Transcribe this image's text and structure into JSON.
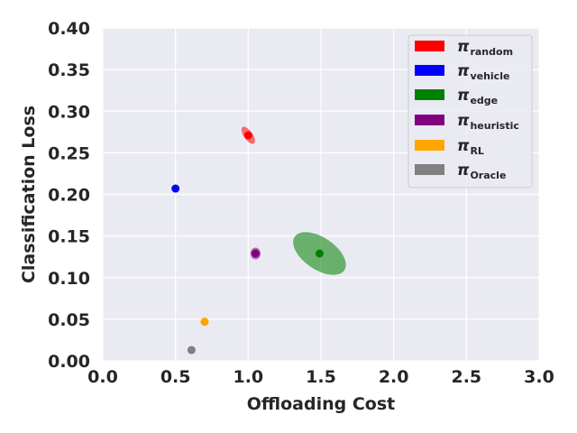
{
  "chart_data": {
    "type": "scatter",
    "xlabel": "Offloading Cost",
    "ylabel": "Classification Loss",
    "xlim": [
      0.0,
      3.0
    ],
    "ylim": [
      0.0,
      0.4
    ],
    "xticks": [
      "0.0",
      "0.5",
      "1.0",
      "1.5",
      "2.0",
      "2.5",
      "3.0"
    ],
    "yticks": [
      "0.00",
      "0.05",
      "0.10",
      "0.15",
      "0.20",
      "0.25",
      "0.30",
      "0.35",
      "0.40"
    ],
    "grid": true,
    "legend_position": "top-right",
    "series": [
      {
        "name": "π",
        "sub": "random",
        "color": "#ff0000",
        "x": 1.0,
        "y": 0.271,
        "ellipse": {
          "sx": 0.03,
          "sy": 0.012,
          "tilt": -35,
          "opacity": 0.55
        }
      },
      {
        "name": "π",
        "sub": "vehicle",
        "color": "#0000ff",
        "x": 0.5,
        "y": 0.207,
        "ellipse": null
      },
      {
        "name": "π",
        "sub": "edge",
        "color": "#008000",
        "x": 1.49,
        "y": 0.129,
        "ellipse": {
          "sx": 0.11,
          "sy": 0.036,
          "tilt": -56,
          "opacity": 0.55
        }
      },
      {
        "name": "π",
        "sub": "heuristic",
        "color": "#800080",
        "x": 1.05,
        "y": 0.129,
        "ellipse": {
          "sx": 0.035,
          "sy": 0.007,
          "tilt": 0,
          "opacity": 0.55
        }
      },
      {
        "name": "π",
        "sub": "RL",
        "color": "#ffa500",
        "x": 0.7,
        "y": 0.047,
        "ellipse": {
          "sx": 0.018,
          "sy": 0.005,
          "tilt": 0,
          "opacity": 0.55
        }
      },
      {
        "name": "π",
        "sub": "Oracle",
        "color": "#808080",
        "x": 0.61,
        "y": 0.013,
        "ellipse": {
          "sx": 0.022,
          "sy": 0.004,
          "tilt": 0,
          "opacity": 0.55
        }
      }
    ]
  }
}
